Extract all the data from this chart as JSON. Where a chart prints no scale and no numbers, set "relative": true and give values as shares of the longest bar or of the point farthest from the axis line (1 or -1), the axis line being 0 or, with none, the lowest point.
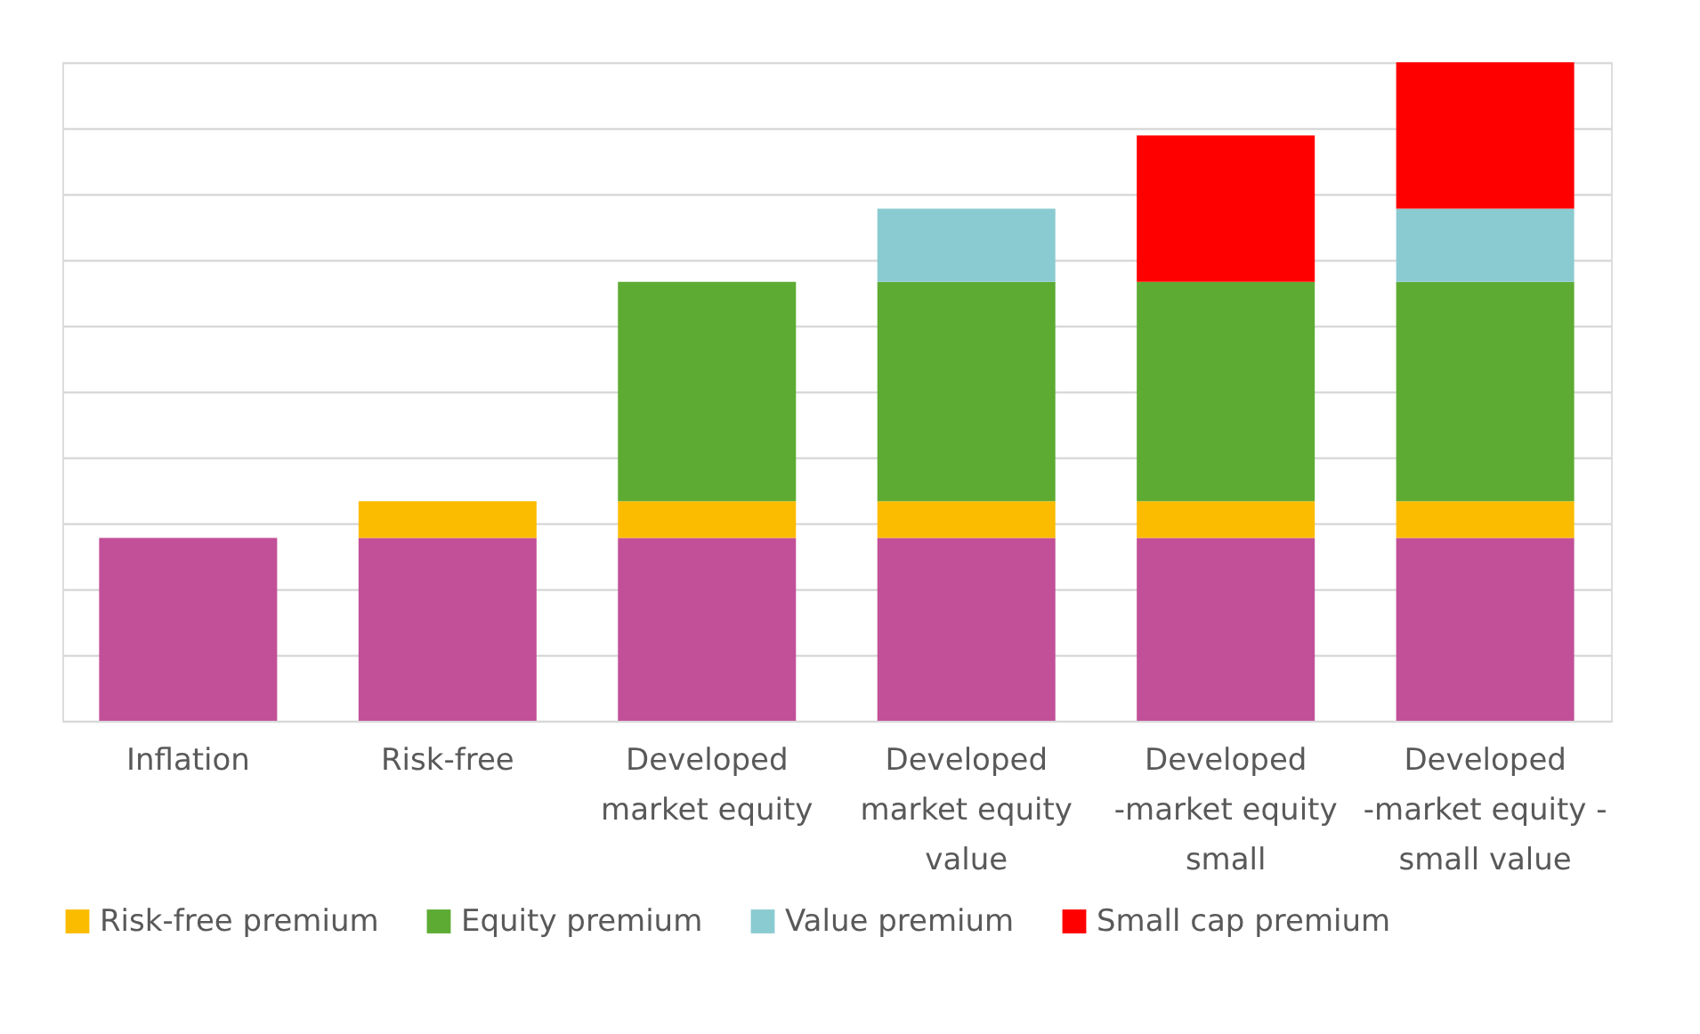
{
  "chart_data": {
    "type": "bar",
    "stacked": true,
    "relative": true,
    "grid": "y",
    "legend": "bottom",
    "categories": [
      "Inflation",
      "Risk-free",
      "Developed market equity",
      "Developed market equity value",
      "Developed -market equity small",
      "Developed -market equity - small value"
    ],
    "series": [
      {
        "color": "#c25098",
        "values": [
          0.2778,
          0.2778,
          0.2778,
          0.2778,
          0.2778,
          0.2778
        ]
      },
      {
        "name": "Risk-free premium",
        "color": "#fbbc00",
        "values": [
          0,
          0.0556,
          0.0556,
          0.0556,
          0.0556,
          0.0556
        ]
      },
      {
        "name": "Equity premium",
        "color": "#5dab33",
        "values": [
          0,
          0,
          0.3333,
          0.3333,
          0.3333,
          0.3333
        ]
      },
      {
        "name": "Value premium",
        "color": "#8acbd1",
        "values": [
          0,
          0,
          0,
          0.1111,
          0,
          0.1111
        ]
      },
      {
        "name": "Small cap premium",
        "color": "#ff0000",
        "values": [
          0,
          0,
          0,
          0,
          0.2222,
          0.2222
        ]
      }
    ]
  }
}
